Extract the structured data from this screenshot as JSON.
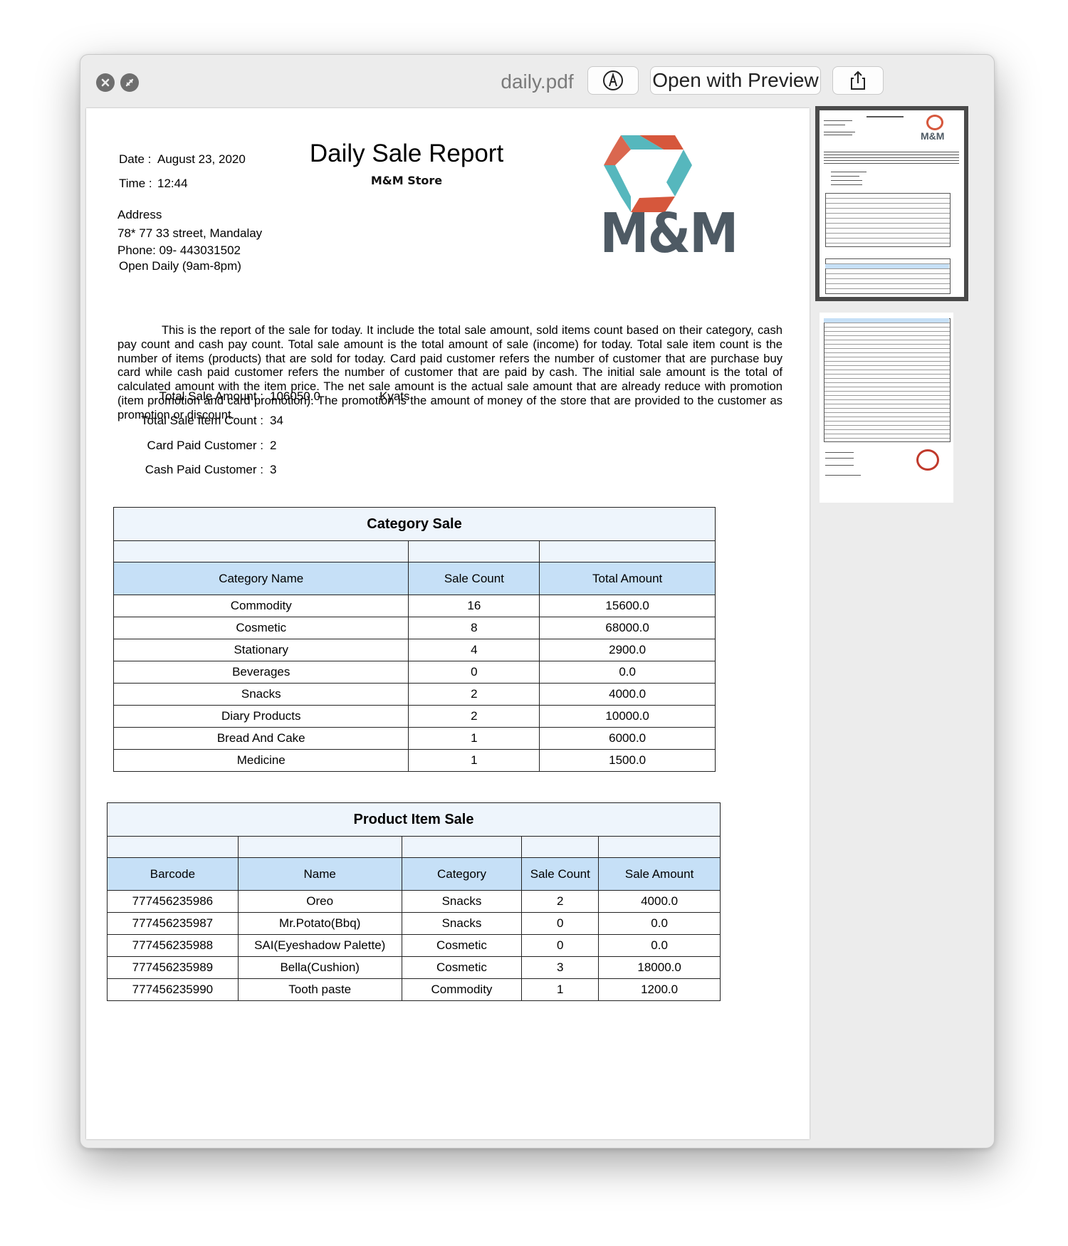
{
  "window": {
    "title": "daily.pdf",
    "open_with_label": "Open with Preview",
    "markup_icon": "markup-pen-icon",
    "share_icon": "share-icon"
  },
  "report": {
    "title": "Daily Sale Report",
    "store": "M&M Store",
    "logo_text": "M&M",
    "date_label": "Date :",
    "date_value": "August 23, 2020",
    "time_label": "Time :",
    "time_value": "12:44",
    "address_label": "Address",
    "address_line1": "78* 77 33 street, Mandalay",
    "phone": "Phone: 09- 443031502",
    "hours": "Open Daily (9am-8pm)",
    "description": "This is the report of the sale for today. It include the total sale amount, sold items count based on their category, cash pay count and cash pay count. Total sale amount is the total amount of sale (income) for today. Total sale item count is the number of items (products) that are sold for today.  Card paid customer refers the number of customer that are purchase buy card while cash paid customer refers the number of customer that are paid by cash. The initial sale amount is the total of calculated amount with the item price. The net sale amount is the actual sale amount that are already reduce with promotion (item promotion and card promotion). The promotion is the amount of money of the store that are provided to the customer as promotion or discount.",
    "summary": {
      "total_sale_label": "Total Sale Amount :",
      "total_sale_value": "106050.0",
      "currency": "Kyats",
      "item_count_label": "Total Sale Item Count :",
      "item_count_value": "34",
      "card_label": "Card Paid Customer :",
      "card_value": "2",
      "cash_label": "Cash Paid Customer :",
      "cash_value": "3"
    }
  },
  "category_table": {
    "caption": "Category Sale",
    "headers": [
      "Category Name",
      "Sale Count",
      "Total Amount"
    ],
    "rows": [
      [
        "Commodity",
        "16",
        "15600.0"
      ],
      [
        "Cosmetic",
        "8",
        "68000.0"
      ],
      [
        "Stationary",
        "4",
        "2900.0"
      ],
      [
        "Beverages",
        "0",
        "0.0"
      ],
      [
        "Snacks",
        "2",
        "4000.0"
      ],
      [
        "Diary Products",
        "2",
        "10000.0"
      ],
      [
        "Bread And Cake",
        "1",
        "6000.0"
      ],
      [
        "Medicine",
        "1",
        "1500.0"
      ]
    ]
  },
  "product_table": {
    "caption": "Product Item Sale",
    "headers": [
      "Barcode",
      "Name",
      "Category",
      "Sale Count",
      "Sale Amount"
    ],
    "rows": [
      [
        "777456235986",
        "Oreo",
        "Snacks",
        "2",
        "4000.0"
      ],
      [
        "777456235987",
        "Mr.Potato(Bbq)",
        "Snacks",
        "0",
        "0.0"
      ],
      [
        "777456235988",
        "SAI(Eyeshadow Palette)",
        "Cosmetic",
        "0",
        "0.0"
      ],
      [
        "777456235989",
        "Bella(Cushion)",
        "Cosmetic",
        "3",
        "18000.0"
      ],
      [
        "777456235990",
        "Tooth paste",
        "Commodity",
        "1",
        "1200.0"
      ]
    ]
  },
  "thumbnails": {
    "page1_logo": "M&M"
  }
}
